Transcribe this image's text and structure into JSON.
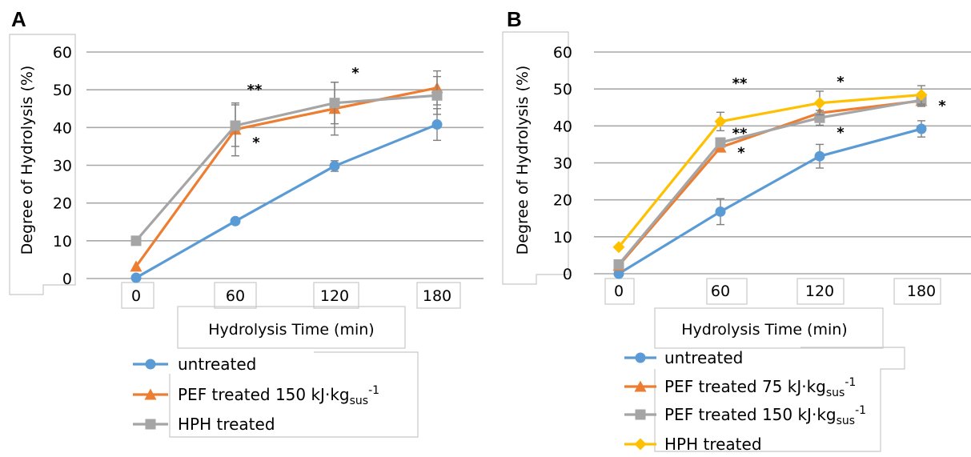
{
  "chart_data": [
    {
      "panel": "A",
      "type": "line",
      "categories": [
        "0",
        "60",
        "120",
        "180"
      ],
      "ylabel": "Degree of Hydrolysis (%)",
      "xlabel": "Hydrolysis Time (min)",
      "yticks": [
        "0",
        "10",
        "20",
        "30",
        "40",
        "50",
        "60"
      ],
      "ylim": [
        0,
        60
      ],
      "grid": true,
      "legend_position": "bottom",
      "series": [
        {
          "name": "untreated",
          "marker": "circle",
          "color": "#5b9bd5",
          "values": [
            0.2,
            15.2,
            29.8,
            40.8
          ],
          "errors": [
            0,
            0.6,
            1.4,
            4.2
          ]
        },
        {
          "name": "PEF treated 150 kJ·kg",
          "name_sub": "sus",
          "name_sup": "-1",
          "marker": "triangle",
          "color": "#ed7d31",
          "values": [
            3.2,
            39.5,
            45.0,
            50.5
          ],
          "errors": [
            0,
            7.0,
            7.0,
            4.5
          ]
        },
        {
          "name": "HPH treated",
          "marker": "square",
          "color": "#a5a5a5",
          "values": [
            10.0,
            40.5,
            46.5,
            48.5
          ],
          "errors": [
            0,
            5.5,
            5.5,
            5.0
          ]
        }
      ],
      "annotations": [
        {
          "text": "**",
          "x": 1,
          "y": 50.0
        },
        {
          "text": "*",
          "x": 1,
          "y": 36.0
        },
        {
          "text": "*",
          "x": 2,
          "y": 54.5
        }
      ]
    },
    {
      "panel": "B",
      "type": "line",
      "categories": [
        "0",
        "60",
        "120",
        "180"
      ],
      "ylabel": "Degree of Hydrolysis (%)",
      "xlabel": "Hydrolysis Time (min)",
      "yticks": [
        "0",
        "10",
        "20",
        "30",
        "40",
        "50",
        "60"
      ],
      "ylim": [
        0,
        60
      ],
      "grid": true,
      "legend_position": "bottom",
      "series": [
        {
          "name": "untreated",
          "marker": "circle",
          "color": "#5b9bd5",
          "values": [
            0.0,
            16.8,
            31.8,
            39.2
          ],
          "errors": [
            0,
            3.5,
            3.2,
            2.2
          ]
        },
        {
          "name": "PEF treated 75 kJ·kg",
          "name_sub": "sus",
          "name_sup": "-1",
          "marker": "triangle",
          "color": "#ed7d31",
          "values": [
            2.2,
            34.2,
            43.5,
            46.8
          ],
          "errors": [
            0,
            1.2,
            2.5,
            1.5
          ]
        },
        {
          "name": "PEF treated 150 kJ·kg",
          "name_sub": "sus",
          "name_sup": "-1",
          "marker": "square",
          "color": "#a5a5a5",
          "values": [
            2.5,
            35.5,
            42.2,
            47.0
          ],
          "errors": [
            0,
            1.2,
            2.0,
            1.5
          ]
        },
        {
          "name": "HPH treated",
          "marker": "diamond",
          "color": "#ffc000",
          "values": [
            7.2,
            41.2,
            46.2,
            48.4
          ],
          "errors": [
            0,
            2.5,
            3.2,
            2.5
          ]
        }
      ],
      "annotations": [
        {
          "text": "**",
          "x": 1,
          "y": 51.5
        },
        {
          "text": "**",
          "x": 1,
          "y": 38.0
        },
        {
          "text": "*",
          "x": 1,
          "y": 32.8
        },
        {
          "text": "*",
          "x": 2,
          "y": 52.0
        },
        {
          "text": "*",
          "x": 2,
          "y": 38.2
        },
        {
          "text": "*",
          "x": 3,
          "y": 45.5
        }
      ]
    }
  ]
}
